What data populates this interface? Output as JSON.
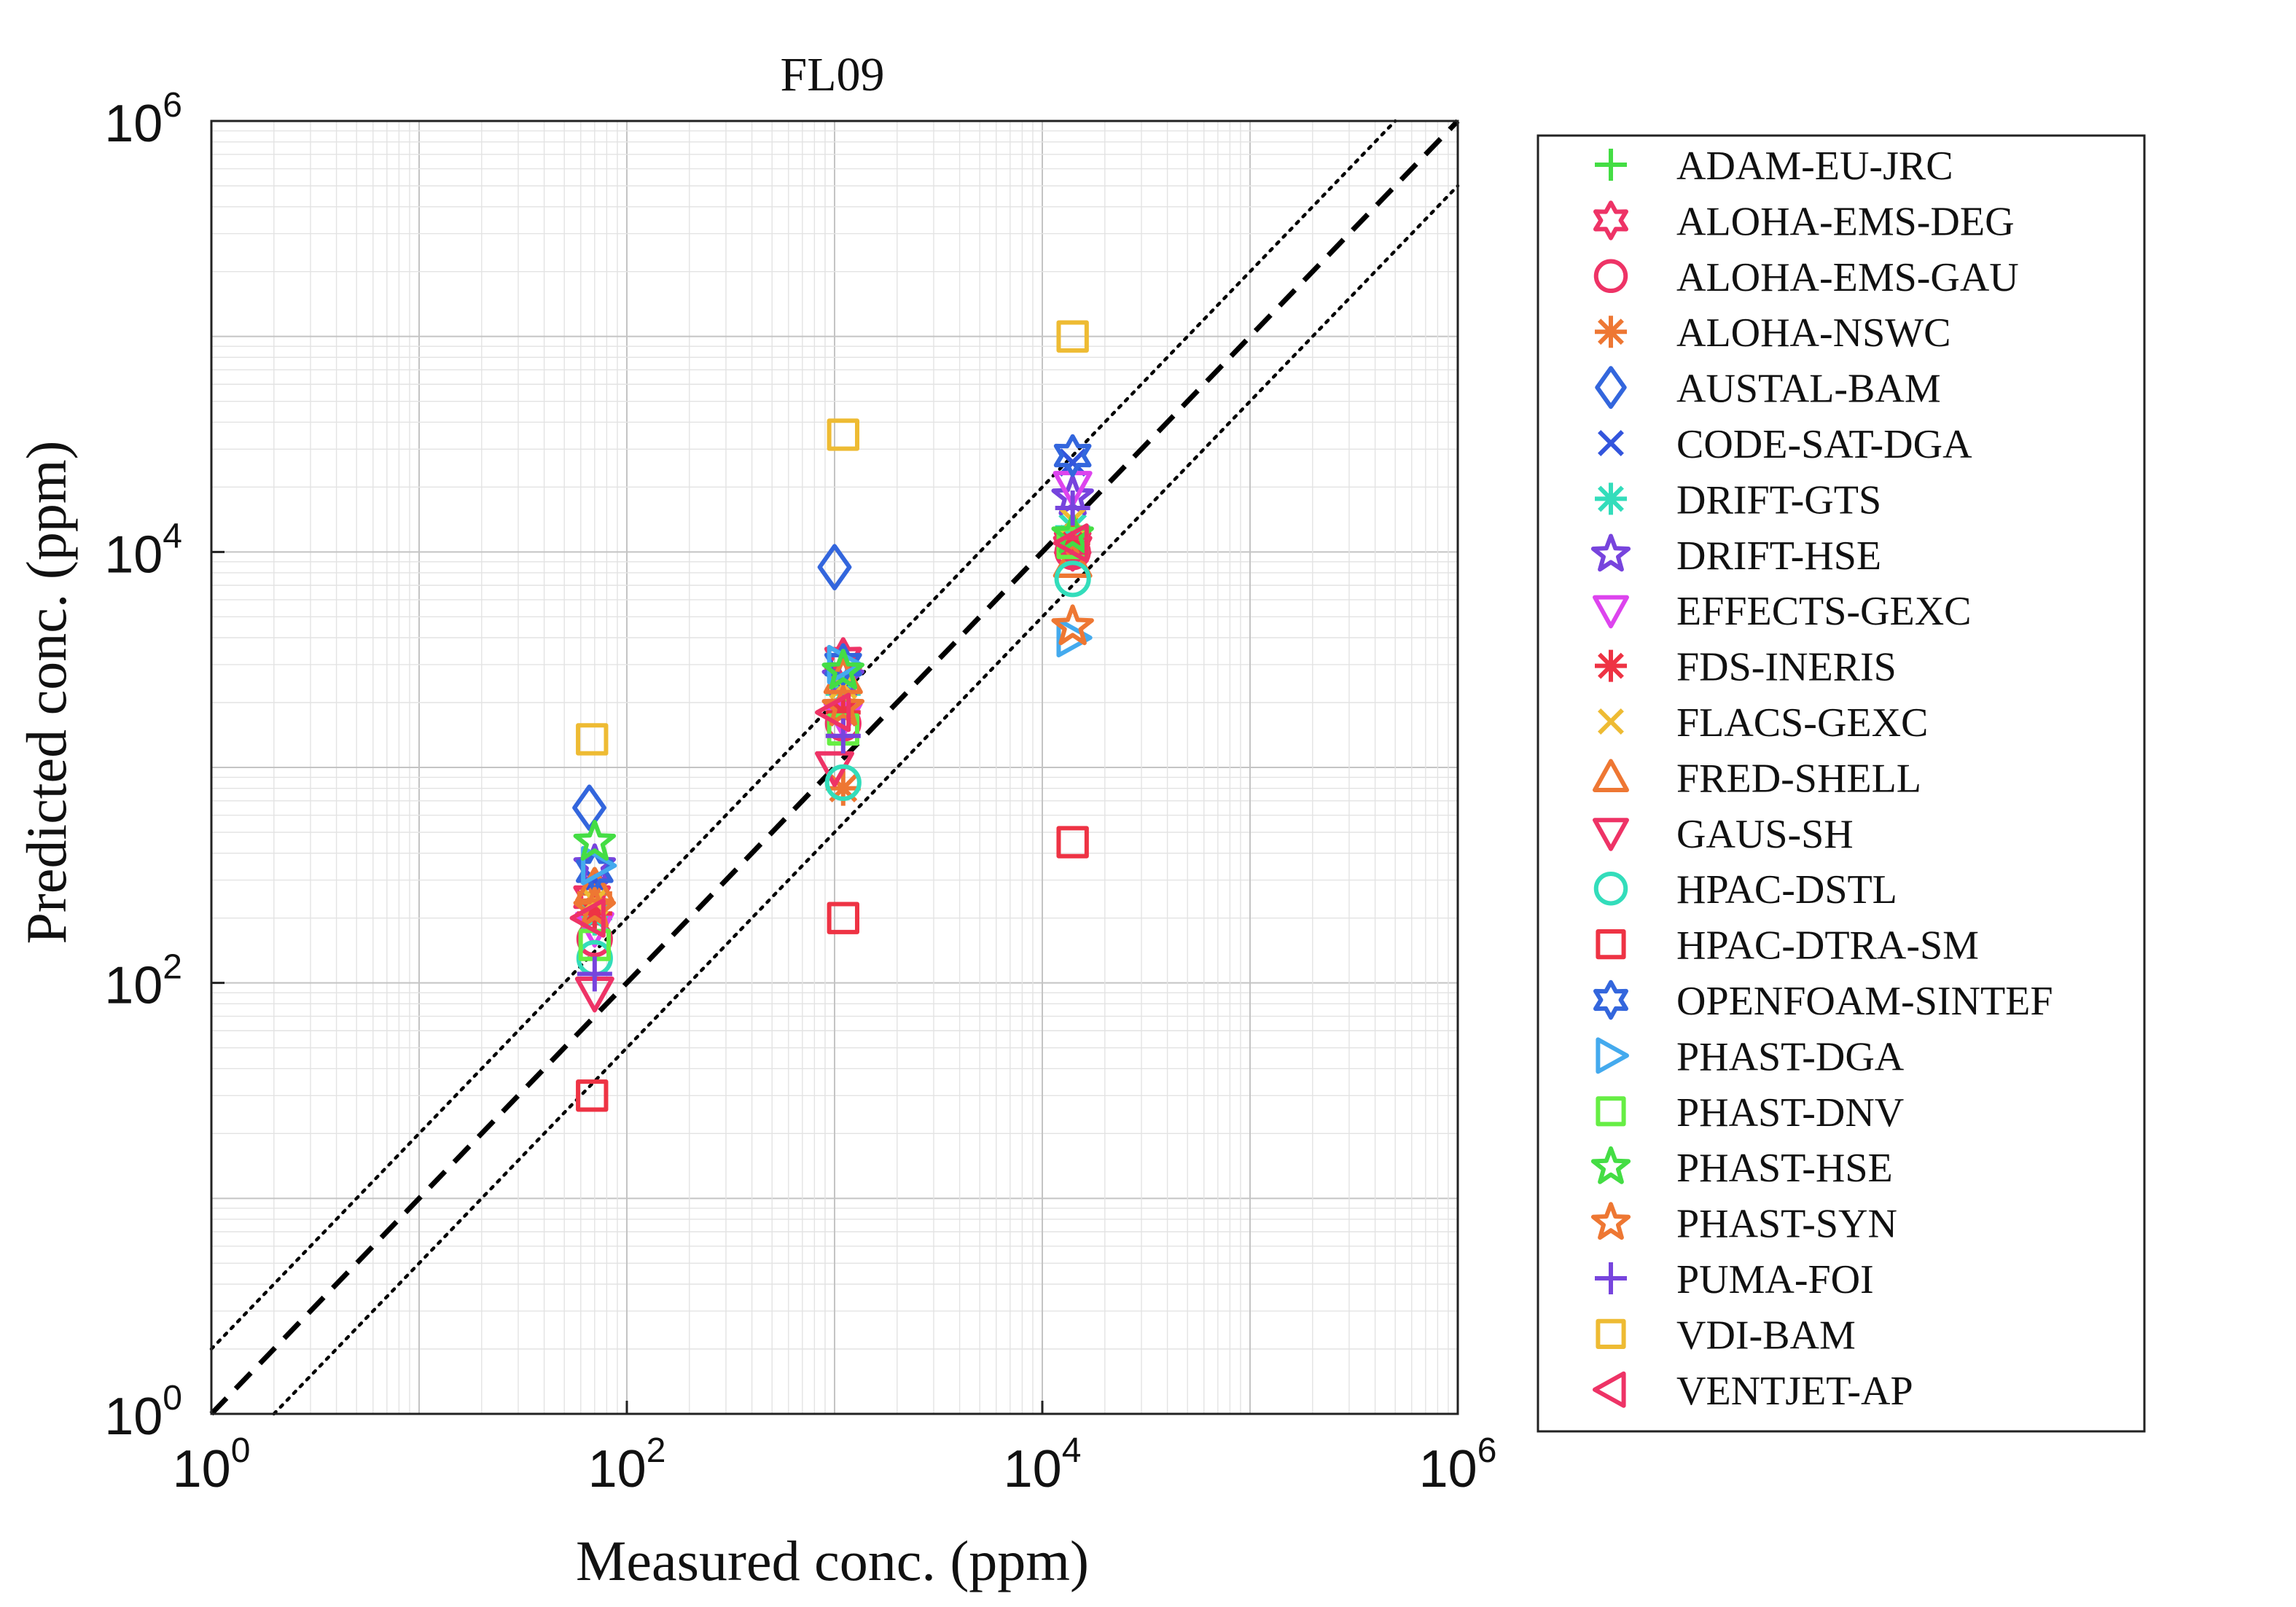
{
  "chart_data": {
    "type": "scatter",
    "title": "FL09",
    "xlabel": "Measured conc. (ppm)",
    "ylabel": "Predicted conc. (ppm)",
    "xscale": "log",
    "yscale": "log",
    "xlim": [
      1,
      1000000
    ],
    "ylim": [
      1,
      1000000
    ],
    "ticks": [
      {
        "value": 1,
        "base": "10",
        "exp": "0"
      },
      {
        "value": 100,
        "base": "10",
        "exp": "2"
      },
      {
        "value": 10000,
        "base": "10",
        "exp": "4"
      },
      {
        "value": 1000000,
        "base": "10",
        "exp": "6"
      }
    ],
    "grid": true,
    "legend_position": "outside-right",
    "reference_lines": [
      {
        "kind": "identity",
        "factor": 1,
        "style": "dashed"
      },
      {
        "kind": "factor",
        "factor": 2,
        "style": "dotted"
      },
      {
        "kind": "factor",
        "factor": 0.5,
        "style": "dotted"
      }
    ],
    "series": [
      {
        "name": "ADAM-EU-JRC",
        "marker": "plus",
        "color": "#44dd44",
        "points": [
          [
            70,
            200
          ],
          [
            1100,
            2000
          ],
          [
            14000,
            12000
          ]
        ]
      },
      {
        "name": "ALOHA-EMS-DEG",
        "marker": "hexagram",
        "color": "#ee3366",
        "points": [
          [
            68,
            250
          ],
          [
            1100,
            3200
          ],
          [
            14000,
            11000
          ]
        ]
      },
      {
        "name": "ALOHA-EMS-GAU",
        "marker": "circle",
        "color": "#ee3366",
        "points": [
          [
            70,
            160
          ],
          [
            1100,
            1600
          ],
          [
            14000,
            10000
          ]
        ]
      },
      {
        "name": "ALOHA-NSWC",
        "marker": "asterisk",
        "color": "#ee7733",
        "points": [
          [
            70,
            260
          ],
          [
            1100,
            800
          ],
          [
            14000,
            11500
          ]
        ]
      },
      {
        "name": "AUSTAL-BAM",
        "marker": "diamond",
        "color": "#3366dd",
        "points": [
          [
            66,
            650
          ],
          [
            1000,
            8500
          ]
        ]
      },
      {
        "name": "CODE-SAT-DGA",
        "marker": "x",
        "color": "#3355dd",
        "points": [
          [
            70,
            300
          ],
          [
            1100,
            2500
          ],
          [
            14000,
            26000
          ]
        ]
      },
      {
        "name": "DRIFT-GTS",
        "marker": "asterisk",
        "color": "#33ddbb",
        "points": [
          [
            70,
            200
          ],
          [
            1100,
            2200
          ],
          [
            14000,
            13000
          ]
        ]
      },
      {
        "name": "DRIFT-HSE",
        "marker": "pentagram",
        "color": "#7744dd",
        "points": [
          [
            70,
            350
          ],
          [
            1100,
            2600
          ],
          [
            14000,
            18000
          ]
        ]
      },
      {
        "name": "EFFECTS-GEXC",
        "marker": "triangle-down",
        "color": "#dd44ee",
        "points": [
          [
            70,
            180
          ],
          [
            1100,
            1700
          ],
          [
            14000,
            20000
          ]
        ]
      },
      {
        "name": "FDS-INERIS",
        "marker": "asterisk",
        "color": "#ee3344",
        "points": [
          [
            70,
            210
          ],
          [
            1100,
            1800
          ],
          [
            14000,
            11000
          ]
        ]
      },
      {
        "name": "FLACS-GEXC",
        "marker": "x",
        "color": "#eebb33",
        "points": [
          [
            70,
            240
          ],
          [
            1100,
            2400
          ],
          [
            14000,
            14000
          ]
        ]
      },
      {
        "name": "FRED-SHELL",
        "marker": "triangle-up",
        "color": "#ee7733",
        "points": [
          [
            70,
            280
          ],
          [
            1100,
            2600
          ],
          [
            14000,
            9000
          ]
        ]
      },
      {
        "name": "GAUS-SH",
        "marker": "triangle-down",
        "color": "#ee3366",
        "points": [
          [
            70,
            90
          ],
          [
            1000,
            1000
          ],
          [
            14000,
            10000
          ]
        ]
      },
      {
        "name": "HPAC-DSTL",
        "marker": "circle",
        "color": "#33ddbb",
        "points": [
          [
            70,
            130
          ],
          [
            1100,
            850
          ],
          [
            14000,
            7500
          ]
        ]
      },
      {
        "name": "HPAC-DTRA-SM",
        "marker": "square",
        "color": "#ee3344",
        "points": [
          [
            68,
            30
          ],
          [
            1100,
            200
          ],
          [
            14000,
            450
          ]
        ]
      },
      {
        "name": "OPENFOAM-SINTEF",
        "marker": "hexagram",
        "color": "#3366dd",
        "points": [
          [
            70,
            330
          ],
          [
            1100,
            3000
          ],
          [
            14000,
            28000
          ]
        ]
      },
      {
        "name": "PHAST-DGA",
        "marker": "triangle-right",
        "color": "#44aaee",
        "points": [
          [
            72,
            350
          ],
          [
            1100,
            3000
          ],
          [
            14000,
            4000
          ]
        ]
      },
      {
        "name": "PHAST-DNV",
        "marker": "square",
        "color": "#66ee44",
        "points": [
          [
            70,
            150
          ],
          [
            1100,
            1500
          ],
          [
            14000,
            11000
          ]
        ]
      },
      {
        "name": "PHAST-HSE",
        "marker": "pentagram",
        "color": "#44dd44",
        "points": [
          [
            70,
            450
          ],
          [
            1100,
            2800
          ],
          [
            14000,
            12000
          ]
        ]
      },
      {
        "name": "PHAST-SYN",
        "marker": "pentagram",
        "color": "#ee7733",
        "points": [
          [
            70,
            220
          ],
          [
            1100,
            1900
          ],
          [
            14000,
            4500
          ]
        ]
      },
      {
        "name": "PUMA-FOI",
        "marker": "plus",
        "color": "#7744dd",
        "points": [
          [
            70,
            110
          ],
          [
            1100,
            1400
          ],
          [
            14000,
            16000
          ]
        ]
      },
      {
        "name": "VDI-BAM",
        "marker": "square",
        "color": "#eebb33",
        "points": [
          [
            68,
            1350
          ],
          [
            1100,
            35000
          ],
          [
            14000,
            100000
          ]
        ]
      },
      {
        "name": "VENTJET-AP",
        "marker": "triangle-left",
        "color": "#ee3366",
        "points": [
          [
            66,
            200
          ],
          [
            1000,
            1800
          ],
          [
            14000,
            11000
          ]
        ]
      }
    ]
  }
}
